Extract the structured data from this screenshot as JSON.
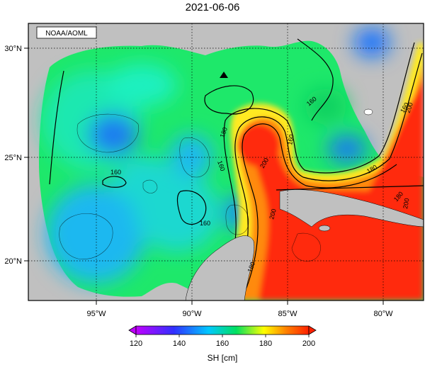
{
  "title": "2021-06-06",
  "credit": "NOAA/AOML",
  "map": {
    "lon_labels": [
      "95°W",
      "90°W",
      "85°W",
      "80°W"
    ],
    "lat_labels": [
      "30°N",
      "25°N",
      "20°N"
    ],
    "contour_labels": [
      "160",
      "160",
      "160",
      "160",
      "160",
      "160",
      "180",
      "180",
      "180",
      "180",
      "200",
      "200",
      "200",
      "200"
    ],
    "marker": "triangle"
  },
  "colorbar": {
    "ticks": [
      "120",
      "140",
      "160",
      "180",
      "200"
    ],
    "label": "SH [cm]",
    "colors": [
      "#c000ff",
      "#3030ff",
      "#00c8ff",
      "#00e060",
      "#ffff00",
      "#ff8000",
      "#ff2000"
    ]
  }
}
